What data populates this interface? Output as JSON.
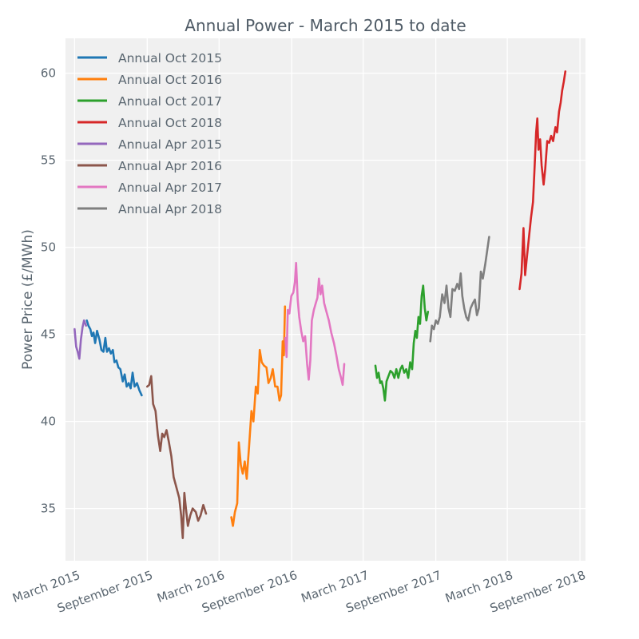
{
  "chart_data": {
    "type": "line",
    "title": "Annual Power - March 2015 to date",
    "xlabel": "",
    "ylabel": "Power Price (£/MWh)",
    "ylim": [
      32.0,
      62.0
    ],
    "xlim": [
      "2015-02-06",
      "2018-09-15"
    ],
    "grid": true,
    "legend_position": "top-left",
    "x_ticks": [
      {
        "label": "March 2015",
        "date": "2015-03-01"
      },
      {
        "label": "September 2015",
        "date": "2015-09-01"
      },
      {
        "label": "March 2016",
        "date": "2016-03-01"
      },
      {
        "label": "September 2016",
        "date": "2016-09-01"
      },
      {
        "label": "March 2017",
        "date": "2017-03-01"
      },
      {
        "label": "September 2017",
        "date": "2017-09-01"
      },
      {
        "label": "March 2018",
        "date": "2018-03-01"
      },
      {
        "label": "September 2018",
        "date": "2018-09-01"
      }
    ],
    "y_ticks": [
      35,
      40,
      45,
      50,
      55,
      60
    ],
    "series": [
      {
        "name": "Annual Oct 2015",
        "color": "#1f77b4",
        "points": [
          [
            "2015-04-01",
            45.8
          ],
          [
            "2015-04-05",
            45.5
          ],
          [
            "2015-04-10",
            45.3
          ],
          [
            "2015-04-14",
            44.9
          ],
          [
            "2015-04-18",
            45.1
          ],
          [
            "2015-04-22",
            44.5
          ],
          [
            "2015-04-27",
            45.2
          ],
          [
            "2015-05-03",
            44.7
          ],
          [
            "2015-05-08",
            44.1
          ],
          [
            "2015-05-13",
            44.0
          ],
          [
            "2015-05-18",
            44.8
          ],
          [
            "2015-05-22",
            44.0
          ],
          [
            "2015-05-27",
            44.2
          ],
          [
            "2015-06-01",
            43.9
          ],
          [
            "2015-06-06",
            44.1
          ],
          [
            "2015-06-10",
            43.4
          ],
          [
            "2015-06-15",
            43.5
          ],
          [
            "2015-06-20",
            43.1
          ],
          [
            "2015-06-25",
            43.0
          ],
          [
            "2015-07-01",
            42.3
          ],
          [
            "2015-07-06",
            42.7
          ],
          [
            "2015-07-11",
            42.0
          ],
          [
            "2015-07-16",
            42.2
          ],
          [
            "2015-07-21",
            41.9
          ],
          [
            "2015-07-26",
            42.8
          ],
          [
            "2015-07-31",
            42.0
          ],
          [
            "2015-08-06",
            42.2
          ],
          [
            "2015-08-12",
            41.8
          ],
          [
            "2015-08-18",
            41.5
          ]
        ]
      },
      {
        "name": "Annual Oct 2016",
        "color": "#ff7f0e",
        "points": [
          [
            "2016-04-01",
            34.5
          ],
          [
            "2016-04-05",
            34.0
          ],
          [
            "2016-04-10",
            34.8
          ],
          [
            "2016-04-16",
            35.3
          ],
          [
            "2016-04-20",
            38.8
          ],
          [
            "2016-04-25",
            37.5
          ],
          [
            "2016-04-30",
            37.0
          ],
          [
            "2016-05-05",
            37.7
          ],
          [
            "2016-05-10",
            36.7
          ],
          [
            "2016-05-16",
            38.6
          ],
          [
            "2016-05-22",
            40.6
          ],
          [
            "2016-05-27",
            40.0
          ],
          [
            "2016-06-02",
            42.0
          ],
          [
            "2016-06-07",
            41.6
          ],
          [
            "2016-06-12",
            44.1
          ],
          [
            "2016-06-17",
            43.4
          ],
          [
            "2016-06-23",
            43.2
          ],
          [
            "2016-06-29",
            43.1
          ],
          [
            "2016-07-04",
            42.2
          ],
          [
            "2016-07-10",
            42.5
          ],
          [
            "2016-07-15",
            43.0
          ],
          [
            "2016-07-21",
            42.0
          ],
          [
            "2016-07-27",
            42.0
          ],
          [
            "2016-08-01",
            41.2
          ],
          [
            "2016-08-05",
            41.5
          ],
          [
            "2016-08-09",
            44.6
          ],
          [
            "2016-08-12",
            43.8
          ],
          [
            "2016-08-15",
            46.6
          ]
        ]
      },
      {
        "name": "Annual Oct 2017",
        "color": "#2ca02c",
        "points": [
          [
            "2017-04-01",
            43.2
          ],
          [
            "2017-04-05",
            42.5
          ],
          [
            "2017-04-09",
            42.8
          ],
          [
            "2017-04-13",
            42.2
          ],
          [
            "2017-04-17",
            42.3
          ],
          [
            "2017-04-21",
            41.9
          ],
          [
            "2017-04-25",
            41.2
          ],
          [
            "2017-04-29",
            42.3
          ],
          [
            "2017-05-04",
            42.6
          ],
          [
            "2017-05-09",
            42.9
          ],
          [
            "2017-05-14",
            42.8
          ],
          [
            "2017-05-19",
            42.5
          ],
          [
            "2017-05-24",
            43.0
          ],
          [
            "2017-05-29",
            42.5
          ],
          [
            "2017-06-03",
            43.0
          ],
          [
            "2017-06-08",
            43.2
          ],
          [
            "2017-06-13",
            42.8
          ],
          [
            "2017-06-18",
            43.0
          ],
          [
            "2017-06-23",
            42.5
          ],
          [
            "2017-06-28",
            43.4
          ],
          [
            "2017-07-03",
            43.0
          ],
          [
            "2017-07-07",
            44.5
          ],
          [
            "2017-07-11",
            45.2
          ],
          [
            "2017-07-15",
            44.8
          ],
          [
            "2017-07-19",
            46.0
          ],
          [
            "2017-07-23",
            45.6
          ],
          [
            "2017-07-27",
            47.2
          ],
          [
            "2017-07-31",
            47.8
          ],
          [
            "2017-08-04",
            46.5
          ],
          [
            "2017-08-08",
            45.8
          ],
          [
            "2017-08-12",
            46.3
          ]
        ]
      },
      {
        "name": "Annual Oct 2018",
        "color": "#d62728",
        "points": [
          [
            "2018-04-01",
            47.6
          ],
          [
            "2018-04-06",
            48.5
          ],
          [
            "2018-04-11",
            51.1
          ],
          [
            "2018-04-15",
            48.4
          ],
          [
            "2018-04-20",
            49.5
          ],
          [
            "2018-04-25",
            50.6
          ],
          [
            "2018-04-30",
            51.7
          ],
          [
            "2018-05-05",
            52.6
          ],
          [
            "2018-05-09",
            54.5
          ],
          [
            "2018-05-13",
            56.6
          ],
          [
            "2018-05-16",
            57.4
          ],
          [
            "2018-05-19",
            55.6
          ],
          [
            "2018-05-23",
            56.2
          ],
          [
            "2018-05-27",
            54.7
          ],
          [
            "2018-06-01",
            53.6
          ],
          [
            "2018-06-05",
            54.5
          ],
          [
            "2018-06-10",
            56.1
          ],
          [
            "2018-06-15",
            56.0
          ],
          [
            "2018-06-20",
            56.4
          ],
          [
            "2018-06-25",
            56.1
          ],
          [
            "2018-07-01",
            56.9
          ],
          [
            "2018-07-05",
            56.6
          ],
          [
            "2018-07-10",
            57.8
          ],
          [
            "2018-07-14",
            58.3
          ],
          [
            "2018-07-18",
            59.0
          ],
          [
            "2018-07-22",
            59.5
          ],
          [
            "2018-07-26",
            60.1
          ]
        ]
      },
      {
        "name": "Annual Apr 2015",
        "color": "#9467bd",
        "points": [
          [
            "2015-03-01",
            45.3
          ],
          [
            "2015-03-05",
            44.3
          ],
          [
            "2015-03-09",
            44.0
          ],
          [
            "2015-03-13",
            43.6
          ],
          [
            "2015-03-17",
            44.7
          ],
          [
            "2015-03-21",
            45.4
          ],
          [
            "2015-03-25",
            45.8
          ],
          [
            "2015-03-30",
            45.5
          ]
        ]
      },
      {
        "name": "Annual Apr 2016",
        "color": "#8c564b",
        "points": [
          [
            "2015-09-01",
            42.0
          ],
          [
            "2015-09-06",
            42.1
          ],
          [
            "2015-09-11",
            42.6
          ],
          [
            "2015-09-16",
            41.0
          ],
          [
            "2015-09-22",
            40.6
          ],
          [
            "2015-09-28",
            39.2
          ],
          [
            "2015-10-04",
            38.3
          ],
          [
            "2015-10-09",
            39.3
          ],
          [
            "2015-10-14",
            39.1
          ],
          [
            "2015-10-20",
            39.5
          ],
          [
            "2015-10-26",
            38.8
          ],
          [
            "2015-11-01",
            38.0
          ],
          [
            "2015-11-07",
            36.8
          ],
          [
            "2015-11-14",
            36.2
          ],
          [
            "2015-11-21",
            35.6
          ],
          [
            "2015-11-26",
            34.6
          ],
          [
            "2015-11-30",
            33.3
          ],
          [
            "2015-12-04",
            35.9
          ],
          [
            "2015-12-08",
            35.0
          ],
          [
            "2015-12-13",
            34.0
          ],
          [
            "2015-12-19",
            34.6
          ],
          [
            "2015-12-25",
            35.0
          ],
          [
            "2016-01-02",
            34.8
          ],
          [
            "2016-01-08",
            34.3
          ],
          [
            "2016-01-14",
            34.6
          ],
          [
            "2016-01-21",
            35.2
          ],
          [
            "2016-01-28",
            34.7
          ]
        ]
      },
      {
        "name": "Annual Apr 2017",
        "color": "#e377c2",
        "points": [
          [
            "2016-08-16",
            44.8
          ],
          [
            "2016-08-19",
            43.7
          ],
          [
            "2016-08-22",
            46.4
          ],
          [
            "2016-08-26",
            46.2
          ],
          [
            "2016-08-31",
            47.2
          ],
          [
            "2016-09-05",
            47.4
          ],
          [
            "2016-09-09",
            48.0
          ],
          [
            "2016-09-12",
            49.1
          ],
          [
            "2016-09-16",
            47.0
          ],
          [
            "2016-09-20",
            46.0
          ],
          [
            "2016-09-25",
            45.2
          ],
          [
            "2016-09-30",
            44.6
          ],
          [
            "2016-10-05",
            44.9
          ],
          [
            "2016-10-10",
            43.3
          ],
          [
            "2016-10-14",
            42.4
          ],
          [
            "2016-10-18",
            43.5
          ],
          [
            "2016-10-22",
            45.8
          ],
          [
            "2016-10-27",
            46.4
          ],
          [
            "2016-11-01",
            46.8
          ],
          [
            "2016-11-05",
            47.1
          ],
          [
            "2016-11-09",
            48.2
          ],
          [
            "2016-11-13",
            47.3
          ],
          [
            "2016-11-17",
            47.8
          ],
          [
            "2016-11-22",
            46.8
          ],
          [
            "2016-11-28",
            46.3
          ],
          [
            "2016-12-04",
            45.8
          ],
          [
            "2016-12-10",
            45.1
          ],
          [
            "2016-12-17",
            44.5
          ],
          [
            "2016-12-23",
            43.8
          ],
          [
            "2016-12-29",
            43.0
          ],
          [
            "2017-01-04",
            42.5
          ],
          [
            "2017-01-08",
            42.1
          ],
          [
            "2017-01-12",
            43.3
          ]
        ]
      },
      {
        "name": "Annual Apr 2018",
        "color": "#7f7f7f",
        "points": [
          [
            "2017-08-18",
            44.6
          ],
          [
            "2017-08-22",
            45.5
          ],
          [
            "2017-08-27",
            45.3
          ],
          [
            "2017-09-01",
            45.8
          ],
          [
            "2017-09-06",
            45.6
          ],
          [
            "2017-09-11",
            46.0
          ],
          [
            "2017-09-17",
            47.3
          ],
          [
            "2017-09-23",
            46.8
          ],
          [
            "2017-09-28",
            47.8
          ],
          [
            "2017-10-03",
            46.5
          ],
          [
            "2017-10-08",
            46.0
          ],
          [
            "2017-10-13",
            47.6
          ],
          [
            "2017-10-19",
            47.5
          ],
          [
            "2017-10-25",
            47.9
          ],
          [
            "2017-10-30",
            47.6
          ],
          [
            "2017-11-03",
            48.5
          ],
          [
            "2017-11-07",
            47.2
          ],
          [
            "2017-11-12",
            46.5
          ],
          [
            "2017-11-17",
            46.0
          ],
          [
            "2017-11-22",
            45.8
          ],
          [
            "2017-11-28",
            46.5
          ],
          [
            "2017-12-04",
            46.8
          ],
          [
            "2017-12-09",
            47.0
          ],
          [
            "2017-12-14",
            46.1
          ],
          [
            "2017-12-19",
            46.5
          ],
          [
            "2017-12-24",
            48.6
          ],
          [
            "2017-12-29",
            48.2
          ],
          [
            "2018-01-04",
            49.0
          ],
          [
            "2018-01-09",
            49.8
          ],
          [
            "2018-01-14",
            50.6
          ]
        ]
      }
    ]
  }
}
